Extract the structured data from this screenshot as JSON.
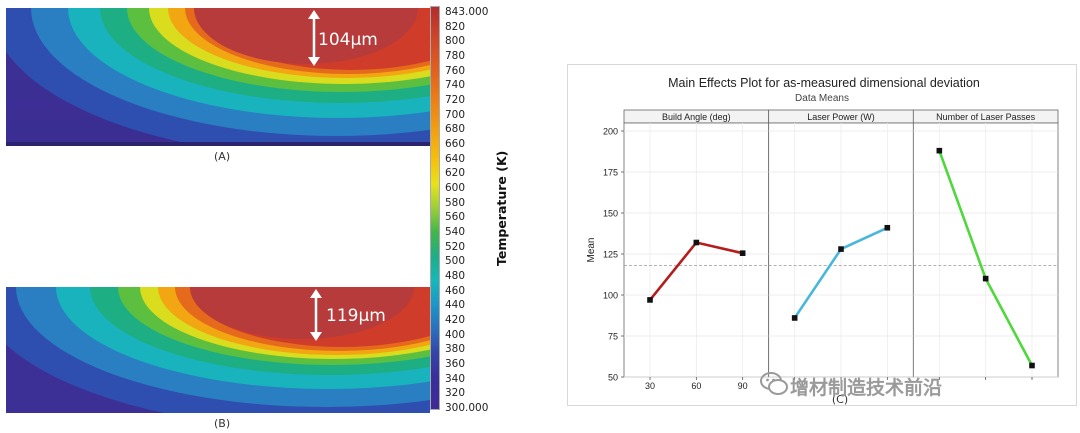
{
  "simulation": {
    "label_a": "(A)",
    "label_b": "(B)",
    "depth_a": "104µm",
    "depth_b": "119µm"
  },
  "colorbar": {
    "title": "Temperature (K)",
    "ticks": [
      "843.000",
      "820",
      "800",
      "780",
      "760",
      "740",
      "720",
      "700",
      "680",
      "660",
      "640",
      "620",
      "600",
      "580",
      "560",
      "540",
      "520",
      "500",
      "480",
      "460",
      "440",
      "420",
      "400",
      "380",
      "360",
      "340",
      "320",
      "300.000"
    ]
  },
  "chart_data": {
    "type": "line",
    "title": "Main Effects Plot for as-measured dimensional deviation",
    "subtitle": "Data Means",
    "ylabel": "Mean",
    "ylim": [
      50,
      200
    ],
    "yticks": [
      50,
      75,
      100,
      125,
      150,
      175,
      200
    ],
    "reference_mean": 118,
    "caption": "(C)",
    "panels": [
      {
        "name": "Build Angle (deg)",
        "categories": [
          "30",
          "60",
          "90"
        ],
        "values": [
          97,
          132,
          125.5
        ],
        "color": "#b51d1d"
      },
      {
        "name": "Laser Power (W)",
        "categories": [
          "",
          "",
          ""
        ],
        "values": [
          86,
          128,
          141
        ],
        "color": "#49b6dc"
      },
      {
        "name": "Number of Laser Passes",
        "categories": [
          "",
          "",
          ""
        ],
        "values": [
          188,
          110,
          57
        ],
        "color": "#4ed83c"
      }
    ]
  },
  "watermark": {
    "text": "增材制造技术前沿"
  }
}
